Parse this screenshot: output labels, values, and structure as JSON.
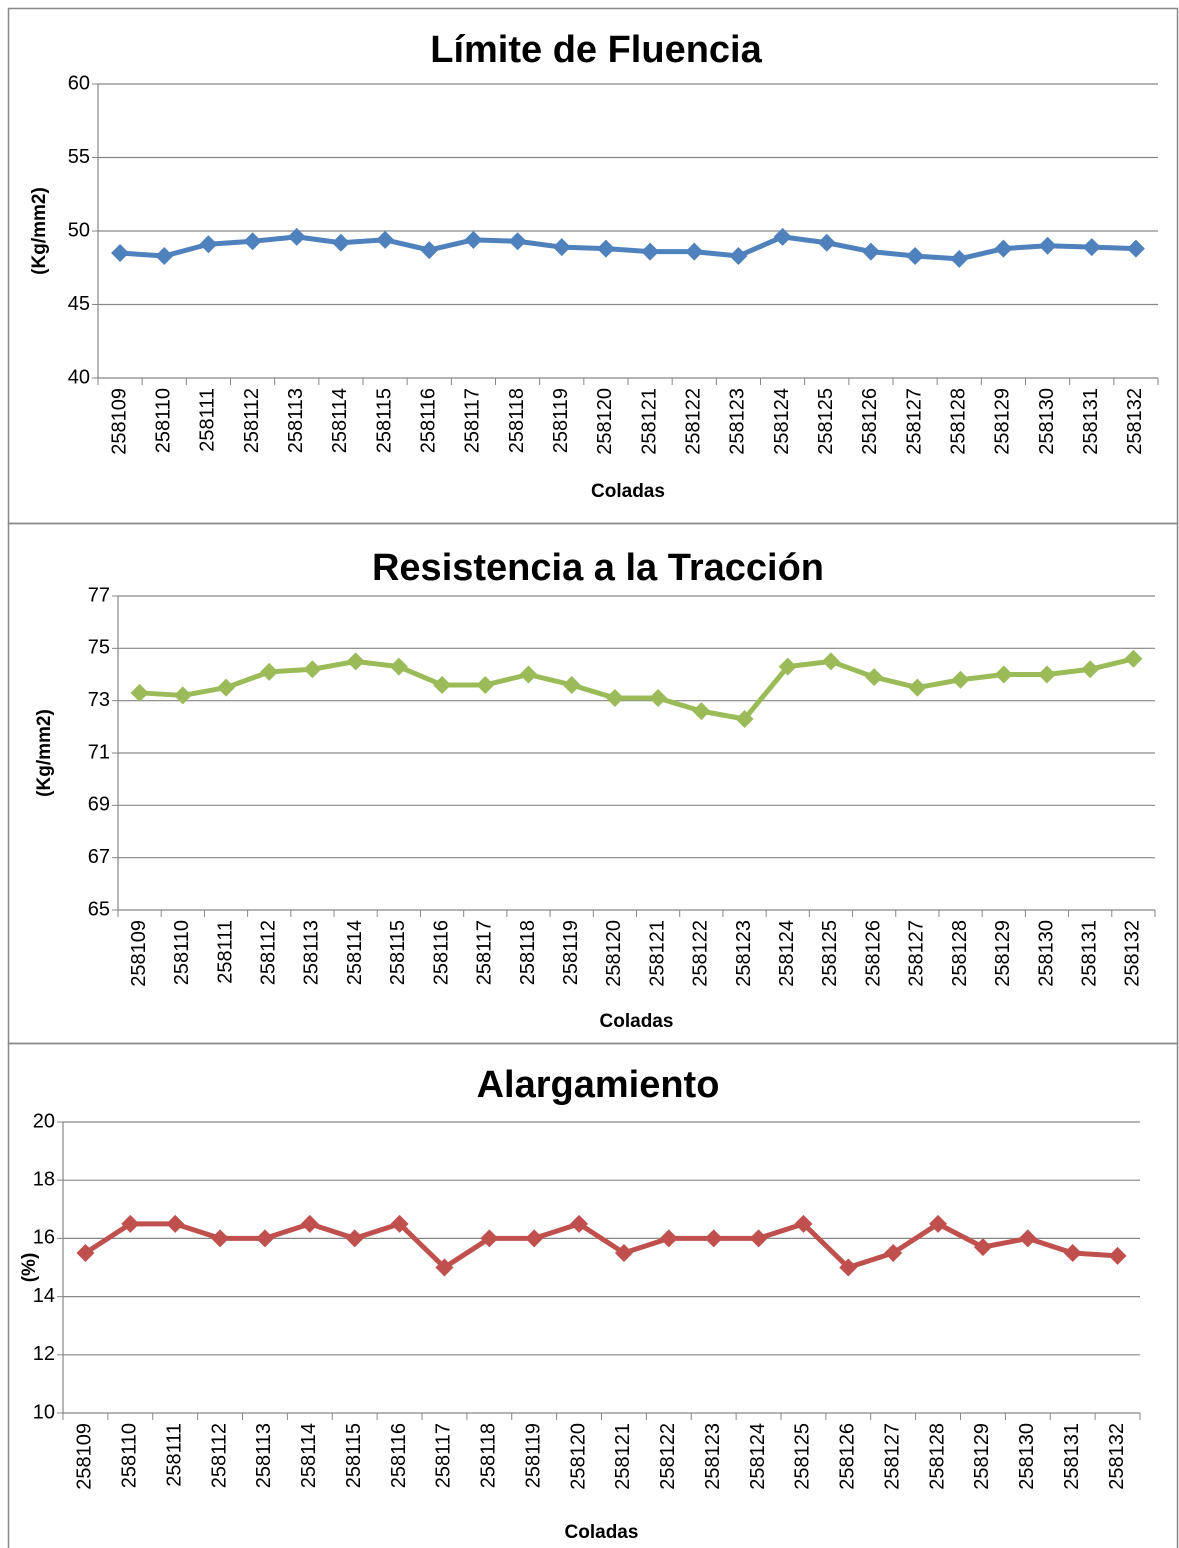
{
  "chart_data": [
    {
      "type": "line",
      "title": "Límite de Fluencia",
      "y_label": "(Kg/mm2)",
      "x_label": "Coladas",
      "categories": [
        "258109",
        "258110",
        "258111",
        "258112",
        "258113",
        "258114",
        "258115",
        "258116",
        "258117",
        "258118",
        "258119",
        "258120",
        "258121",
        "258122",
        "258123",
        "258124",
        "258125",
        "258126",
        "258127",
        "258128",
        "258129",
        "258130",
        "258131",
        "258132"
      ],
      "values": [
        48.5,
        48.3,
        49.1,
        49.3,
        49.6,
        49.2,
        49.4,
        48.7,
        49.4,
        49.3,
        48.9,
        48.8,
        48.6,
        48.6,
        48.3,
        49.6,
        49.2,
        48.6,
        48.3,
        48.1,
        48.8,
        49.0,
        48.9,
        48.8
      ],
      "color": "#4f81bd",
      "ylim": [
        40,
        60
      ],
      "yticks": [
        40,
        45,
        50,
        55,
        60
      ],
      "grid": true
    },
    {
      "type": "line",
      "title": "Resistencia  a la Tracción",
      "y_label": "(Kg/mm2)",
      "x_label": "Coladas",
      "categories": [
        "258109",
        "258110",
        "258111",
        "258112",
        "258113",
        "258114",
        "258115",
        "258116",
        "258117",
        "258118",
        "258119",
        "258120",
        "258121",
        "258122",
        "258123",
        "258124",
        "258125",
        "258126",
        "258127",
        "258128",
        "258129",
        "258130",
        "258131",
        "258132"
      ],
      "values": [
        73.3,
        73.2,
        73.5,
        74.1,
        74.2,
        74.5,
        74.3,
        73.6,
        73.6,
        74.0,
        73.6,
        73.1,
        73.1,
        72.6,
        72.3,
        74.3,
        74.5,
        73.9,
        73.5,
        73.8,
        74.0,
        74.0,
        74.2,
        74.6
      ],
      "color": "#9bbb59",
      "ylim": [
        65,
        77
      ],
      "yticks": [
        65,
        67,
        69,
        71,
        73,
        75,
        77
      ],
      "grid": true
    },
    {
      "type": "line",
      "title": "Alargamiento",
      "y_label": "(%)",
      "x_label": "Coladas",
      "categories": [
        "258109",
        "258110",
        "258111",
        "258112",
        "258113",
        "258114",
        "258115",
        "258116",
        "258117",
        "258118",
        "258119",
        "258120",
        "258121",
        "258122",
        "258123",
        "258124",
        "258125",
        "258126",
        "258127",
        "258128",
        "258129",
        "258130",
        "258131",
        "258132"
      ],
      "values": [
        15.5,
        16.5,
        16.5,
        16,
        16,
        16.5,
        16,
        16.5,
        15,
        16,
        16,
        16.5,
        15.5,
        16,
        16,
        16,
        16.5,
        15,
        15.5,
        16.5,
        15.7,
        16,
        15.5,
        15.4
      ],
      "color": "#c0504d",
      "ylim": [
        10,
        20
      ],
      "yticks": [
        10,
        12,
        14,
        16,
        18,
        20
      ],
      "grid": true
    }
  ]
}
